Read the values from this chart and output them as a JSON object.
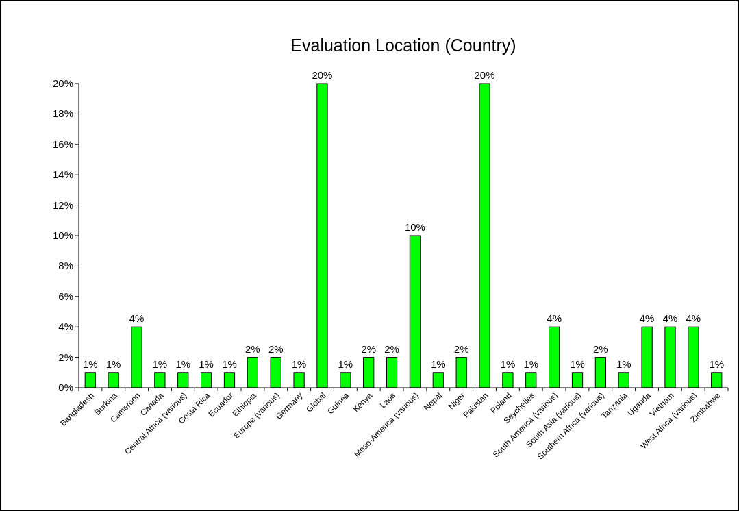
{
  "chart_data": {
    "type": "bar",
    "title": "Evaluation Location (Country)",
    "categories": [
      "Bangladesh",
      "Burkina",
      "Cameroon",
      "Canada",
      "Central Africa (various)",
      "Costa Rica",
      "Ecuador",
      "Ethiopia",
      "Europe (various)",
      "Germany",
      "Global",
      "Guinea",
      "Kenya",
      "Laos",
      "Meso-America (various)",
      "Nepal",
      "Niger",
      "Pakistan",
      "Poland",
      "Seychelles",
      "South America (various)",
      "South Asia (various)",
      "Southern Africa (various)",
      "Tanzania",
      "Uganda",
      "Vietnam",
      "West Africa (various)",
      "Zimbabwe"
    ],
    "values": [
      1,
      1,
      4,
      1,
      1,
      1,
      1,
      2,
      2,
      1,
      20,
      1,
      2,
      2,
      10,
      1,
      2,
      20,
      1,
      1,
      4,
      1,
      2,
      1,
      4,
      4,
      4,
      1
    ],
    "value_labels": [
      "1%",
      "1%",
      "4%",
      "1%",
      "1%",
      "1%",
      "1%",
      "2%",
      "2%",
      "1%",
      "20%",
      "1%",
      "2%",
      "2%",
      "10%",
      "1%",
      "2%",
      "20%",
      "1%",
      "1%",
      "4%",
      "1%",
      "2%",
      "1%",
      "4%",
      "4%",
      "4%",
      "1%"
    ],
    "color": "#00ff00",
    "ylim": [
      0,
      20
    ],
    "yticks": [
      {
        "value": 0,
        "label": "0%"
      },
      {
        "value": 2,
        "label": "2%"
      },
      {
        "value": 4,
        "label": "4%"
      },
      {
        "value": 6,
        "label": "6%"
      },
      {
        "value": 8,
        "label": "8%"
      },
      {
        "value": 10,
        "label": "10%"
      },
      {
        "value": 12,
        "label": "12%"
      },
      {
        "value": 14,
        "label": "14%"
      },
      {
        "value": 16,
        "label": "16%"
      },
      {
        "value": 18,
        "label": "18%"
      },
      {
        "value": 20,
        "label": "20%"
      }
    ],
    "grid": false
  }
}
